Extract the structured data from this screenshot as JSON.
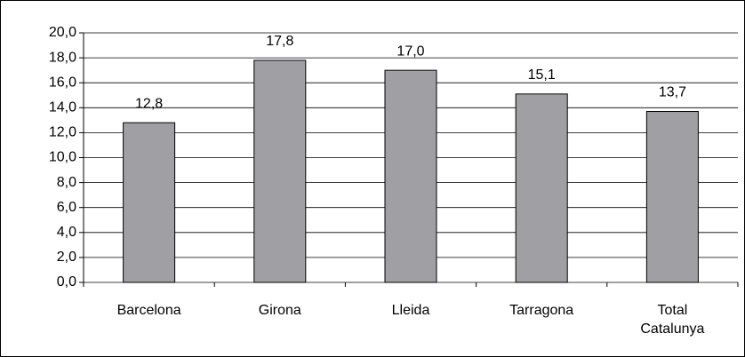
{
  "chart_data": {
    "type": "bar",
    "categories": [
      "Barcelona",
      "Girona",
      "Lleida",
      "Tarragona",
      "Total Catalunya"
    ],
    "values": [
      12.8,
      17.8,
      17.0,
      15.1,
      13.7
    ],
    "value_labels": [
      "12,8",
      "17,8",
      "17,0",
      "15,1",
      "13,7"
    ],
    "color": "#a0a0a4",
    "ylim": [
      0,
      20
    ],
    "yticks": [
      {
        "value": 0,
        "label": "0,0"
      },
      {
        "value": 2,
        "label": "2,0"
      },
      {
        "value": 4,
        "label": "4,0"
      },
      {
        "value": 6,
        "label": "6,0"
      },
      {
        "value": 8,
        "label": "8,0"
      },
      {
        "value": 10,
        "label": "10,0"
      },
      {
        "value": 12,
        "label": "12,0"
      },
      {
        "value": 14,
        "label": "14,0"
      },
      {
        "value": 16,
        "label": "16,0"
      },
      {
        "value": 18,
        "label": "18,0"
      },
      {
        "value": 20,
        "label": "20,0"
      }
    ],
    "grid": true
  }
}
